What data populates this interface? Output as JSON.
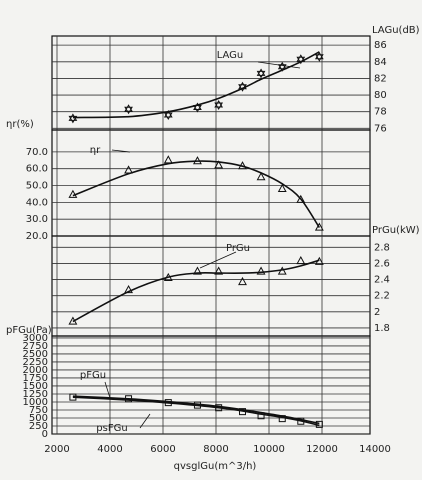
{
  "chart_data": [
    {
      "type": "line",
      "y_label": "LAGu(dB)",
      "y_side": "right",
      "x": [
        2600,
        4700,
        6200,
        7300,
        8100,
        9000,
        9700,
        10500,
        11200,
        11900
      ],
      "ylim": [
        75.8,
        87.1
      ],
      "yticks": [
        76,
        78,
        80,
        82,
        84,
        86
      ],
      "series": [
        {
          "name": "LAGu",
          "color": "#111",
          "marker": "star",
          "values": [
            77.3,
            77.4,
            78.0,
            78.8,
            79.6,
            80.8,
            81.9,
            83.0,
            84.0,
            85.2
          ],
          "points": [
            77.2,
            78.3,
            77.6,
            78.5,
            78.8,
            81.0,
            82.6,
            83.4,
            84.3,
            84.6
          ]
        }
      ]
    },
    {
      "type": "line",
      "y_label": "ηr(%)",
      "y_side": "left",
      "x": [
        2600,
        4700,
        6200,
        7300,
        8100,
        9000,
        9700,
        10500,
        11200,
        11900
      ],
      "ylim": [
        20,
        83
      ],
      "yticks": [
        {
          "value": 20,
          "label": "20.0"
        },
        {
          "value": 30,
          "label": "30.0"
        },
        {
          "value": 40,
          "label": "40.0"
        },
        {
          "value": 50,
          "label": "50.0"
        },
        {
          "value": 60,
          "label": "60.0"
        },
        {
          "value": 70,
          "label": "70.0"
        }
      ],
      "series": [
        {
          "name": "ηr",
          "color": "#111",
          "marker": "triangle",
          "values": [
            44,
            57,
            63,
            64.5,
            64,
            61.5,
            57.5,
            51,
            42,
            25
          ],
          "points": [
            44.5,
            59,
            65,
            64.5,
            62,
            61.5,
            55,
            48,
            41.5,
            25
          ]
        }
      ]
    },
    {
      "type": "line",
      "y_label": "PrGu(kW)",
      "y_side": "right",
      "x": [
        2600,
        4700,
        6200,
        7300,
        8100,
        9000,
        9700,
        10500,
        11200,
        11900
      ],
      "ylim": [
        1.7,
        2.94
      ],
      "yticks": [
        1.8,
        2,
        2.2,
        2.4,
        2.6,
        2.8
      ],
      "series": [
        {
          "name": "PrGu",
          "color": "#111",
          "marker": "triangle",
          "values": [
            1.88,
            2.25,
            2.43,
            2.48,
            2.48,
            2.48,
            2.49,
            2.52,
            2.57,
            2.64
          ],
          "points": [
            1.88,
            2.27,
            2.42,
            2.5,
            2.5,
            2.37,
            2.5,
            2.5,
            2.63,
            2.62
          ]
        }
      ]
    },
    {
      "type": "line",
      "y_label": "pFGu(Pa)",
      "y_side": "left",
      "x": [
        2600,
        4700,
        6200,
        7300,
        8100,
        9000,
        9700,
        10500,
        11200,
        11900
      ],
      "ylim": [
        0,
        3060
      ],
      "yticks": [
        0,
        250,
        500,
        750,
        1000,
        1250,
        1500,
        1750,
        2000,
        2250,
        2500,
        2750,
        3000
      ],
      "x_label": "qvsglGu(m^3/h)",
      "xlim": [
        2000,
        14000
      ],
      "xticks": [
        2000,
        4000,
        6000,
        8000,
        10000,
        12000,
        14000
      ],
      "series": [
        {
          "name": "pFGu",
          "color": "#111",
          "marker": "square",
          "values": [
            1180,
            1100,
            1010,
            930,
            860,
            760,
            670,
            560,
            450,
            330
          ],
          "points": [
            1150,
            1100,
            980,
            900,
            820,
            700,
            570,
            480,
            400,
            300
          ]
        },
        {
          "name": "psFGu",
          "color": "#111",
          "values": [
            1150,
            1060,
            970,
            890,
            820,
            720,
            620,
            520,
            410,
            270
          ]
        }
      ]
    }
  ]
}
